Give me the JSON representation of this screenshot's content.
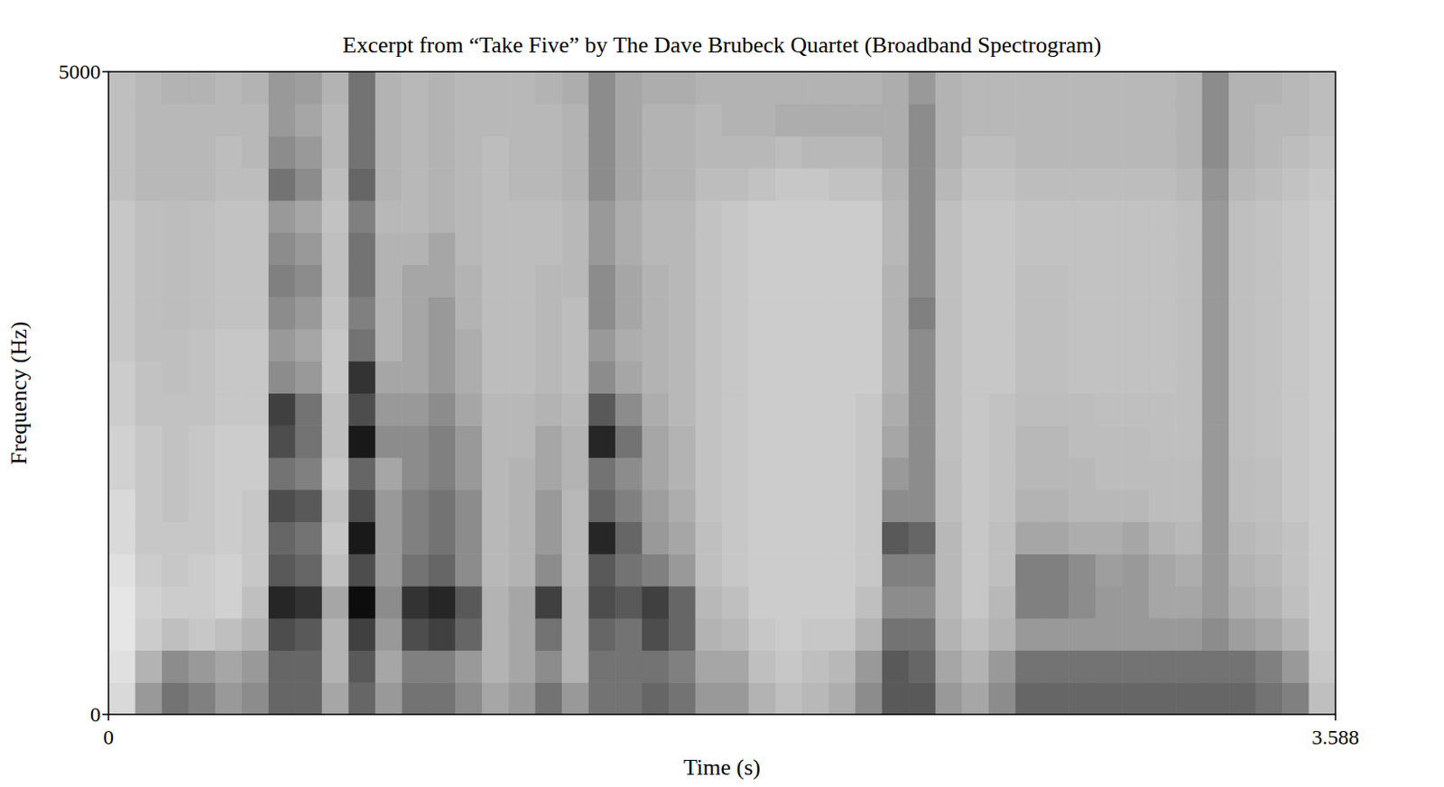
{
  "chart_data": {
    "type": "heatmap",
    "title": "Excerpt from “Take Five” by The Dave Brubeck Quartet (Broadband Spectrogram)",
    "x_label": "Time (s)",
    "y_label": "Frequency (Hz)",
    "xlim": [
      0,
      3.588
    ],
    "ylim": [
      0,
      5000
    ],
    "xticks": [
      0,
      3.588
    ],
    "yticks": [
      0,
      5000
    ],
    "zlim": [
      0,
      100
    ],
    "cells": [
      [
        15,
        12,
        10,
        10,
        12,
        15,
        15,
        18,
        18,
        20,
        20,
        22,
        22,
        22,
        22,
        22,
        25,
        25,
        25,
        25
      ],
      [
        40,
        30,
        20,
        18,
        20,
        22,
        22,
        22,
        22,
        24,
        24,
        25,
        25,
        25,
        25,
        25,
        28,
        28,
        28,
        28
      ],
      [
        55,
        45,
        25,
        20,
        22,
        22,
        24,
        24,
        24,
        24,
        25,
        25,
        26,
        26,
        26,
        26,
        28,
        28,
        28,
        30
      ],
      [
        50,
        40,
        22,
        20,
        20,
        22,
        22,
        22,
        22,
        24,
        24,
        24,
        25,
        25,
        25,
        25,
        28,
        28,
        28,
        30
      ],
      [
        40,
        35,
        25,
        18,
        18,
        20,
        20,
        20,
        20,
        22,
        22,
        22,
        24,
        24,
        24,
        24,
        26,
        26,
        28,
        28
      ],
      [
        45,
        40,
        30,
        25,
        22,
        22,
        22,
        20,
        20,
        22,
        22,
        22,
        24,
        24,
        24,
        24,
        26,
        28,
        28,
        30
      ],
      [
        60,
        60,
        70,
        85,
        65,
        60,
        70,
        55,
        70,
        75,
        45,
        40,
        45,
        50,
        45,
        40,
        55,
        45,
        40,
        40
      ],
      [
        60,
        60,
        65,
        80,
        60,
        55,
        65,
        50,
        55,
        55,
        40,
        35,
        40,
        45,
        40,
        35,
        45,
        40,
        35,
        38
      ],
      [
        35,
        30,
        30,
        35,
        25,
        22,
        25,
        22,
        25,
        25,
        22,
        22,
        24,
        25,
        25,
        24,
        26,
        28,
        28,
        30
      ],
      [
        60,
        65,
        75,
        95,
        70,
        90,
        70,
        60,
        90,
        70,
        80,
        55,
        50,
        55,
        55,
        50,
        60,
        55,
        55,
        55
      ],
      [
        40,
        35,
        40,
        45,
        40,
        40,
        40,
        35,
        45,
        40,
        35,
        30,
        30,
        30,
        30,
        28,
        30,
        30,
        30,
        30
      ],
      [
        55,
        50,
        70,
        80,
        55,
        50,
        50,
        45,
        45,
        40,
        35,
        35,
        35,
        35,
        30,
        28,
        28,
        28,
        28,
        28
      ],
      [
        55,
        50,
        75,
        85,
        60,
        55,
        55,
        50,
        50,
        45,
        40,
        40,
        40,
        35,
        35,
        30,
        30,
        30,
        30,
        30
      ],
      [
        45,
        40,
        60,
        65,
        45,
        45,
        45,
        40,
        40,
        35,
        32,
        32,
        30,
        30,
        28,
        28,
        28,
        28,
        28,
        28
      ],
      [
        35,
        30,
        30,
        30,
        28,
        28,
        28,
        28,
        28,
        28,
        26,
        26,
        26,
        26,
        26,
        26,
        26,
        26,
        28,
        28
      ],
      [
        40,
        35,
        35,
        35,
        30,
        30,
        30,
        30,
        28,
        28,
        26,
        26,
        26,
        26,
        26,
        26,
        28,
        28,
        28,
        28
      ],
      [
        55,
        45,
        55,
        75,
        45,
        40,
        40,
        35,
        35,
        30,
        28,
        28,
        28,
        28,
        26,
        26,
        28,
        28,
        28,
        30
      ],
      [
        40,
        30,
        30,
        30,
        28,
        28,
        28,
        30,
        30,
        28,
        26,
        26,
        26,
        28,
        28,
        28,
        30,
        30,
        30,
        32
      ],
      [
        55,
        55,
        60,
        70,
        65,
        85,
        60,
        55,
        85,
        65,
        45,
        40,
        45,
        45,
        40,
        40,
        45,
        45,
        45,
        45
      ],
      [
        55,
        55,
        55,
        65,
        55,
        60,
        50,
        45,
        55,
        45,
        35,
        32,
        35,
        35,
        32,
        32,
        35,
        35,
        35,
        35
      ],
      [
        60,
        55,
        70,
        75,
        50,
        40,
        38,
        35,
        35,
        32,
        30,
        30,
        30,
        30,
        28,
        28,
        30,
        30,
        30,
        32
      ],
      [
        55,
        50,
        60,
        60,
        40,
        35,
        32,
        30,
        30,
        28,
        28,
        28,
        28,
        28,
        28,
        28,
        30,
        30,
        30,
        32
      ],
      [
        40,
        35,
        30,
        28,
        25,
        25,
        24,
        24,
        24,
        24,
        24,
        24,
        24,
        24,
        24,
        24,
        26,
        28,
        28,
        30
      ],
      [
        40,
        35,
        28,
        25,
        22,
        22,
        22,
        22,
        22,
        22,
        22,
        22,
        22,
        22,
        22,
        22,
        26,
        28,
        30,
        30
      ],
      [
        30,
        25,
        22,
        20,
        20,
        20,
        20,
        20,
        20,
        20,
        20,
        20,
        20,
        20,
        20,
        20,
        24,
        28,
        30,
        30
      ],
      [
        25,
        22,
        20,
        20,
        20,
        20,
        20,
        20,
        20,
        20,
        20,
        20,
        20,
        20,
        20,
        20,
        22,
        26,
        32,
        30
      ],
      [
        28,
        25,
        22,
        20,
        20,
        20,
        20,
        20,
        20,
        20,
        20,
        20,
        20,
        20,
        20,
        20,
        22,
        28,
        32,
        30
      ],
      [
        32,
        28,
        22,
        20,
        20,
        20,
        20,
        20,
        20,
        20,
        20,
        20,
        20,
        20,
        20,
        20,
        24,
        28,
        32,
        30
      ],
      [
        45,
        40,
        30,
        25,
        22,
        22,
        22,
        22,
        22,
        22,
        20,
        20,
        20,
        20,
        20,
        20,
        24,
        28,
        32,
        30
      ],
      [
        65,
        65,
        55,
        45,
        50,
        65,
        45,
        40,
        35,
        32,
        30,
        30,
        30,
        30,
        28,
        28,
        30,
        32,
        32,
        32
      ],
      [
        65,
        60,
        55,
        45,
        50,
        60,
        45,
        45,
        45,
        45,
        45,
        45,
        50,
        45,
        45,
        45,
        45,
        45,
        45,
        40
      ],
      [
        40,
        35,
        30,
        28,
        28,
        28,
        26,
        26,
        25,
        25,
        25,
        25,
        25,
        25,
        25,
        25,
        28,
        30,
        30,
        30
      ],
      [
        35,
        30,
        25,
        22,
        22,
        22,
        22,
        22,
        22,
        22,
        22,
        22,
        22,
        22,
        22,
        22,
        24,
        26,
        28,
        28
      ],
      [
        45,
        40,
        30,
        28,
        25,
        25,
        24,
        24,
        24,
        24,
        22,
        22,
        22,
        22,
        22,
        22,
        24,
        26,
        28,
        28
      ],
      [
        60,
        55,
        40,
        50,
        50,
        35,
        30,
        28,
        28,
        26,
        25,
        25,
        25,
        25,
        24,
        24,
        26,
        28,
        28,
        28
      ],
      [
        60,
        55,
        40,
        50,
        50,
        35,
        30,
        28,
        28,
        26,
        25,
        25,
        25,
        25,
        24,
        24,
        26,
        28,
        28,
        28
      ],
      [
        60,
        55,
        40,
        45,
        45,
        32,
        28,
        28,
        26,
        26,
        24,
        24,
        24,
        24,
        24,
        24,
        26,
        28,
        28,
        28
      ],
      [
        60,
        55,
        40,
        40,
        38,
        32,
        28,
        26,
        26,
        25,
        24,
        24,
        24,
        24,
        24,
        24,
        26,
        28,
        28,
        28
      ],
      [
        60,
        55,
        40,
        40,
        40,
        35,
        28,
        26,
        26,
        25,
        24,
        24,
        24,
        24,
        24,
        24,
        26,
        28,
        28,
        28
      ],
      [
        60,
        55,
        40,
        35,
        35,
        30,
        26,
        26,
        25,
        25,
        24,
        24,
        24,
        24,
        24,
        24,
        26,
        28,
        28,
        28
      ],
      [
        60,
        55,
        40,
        35,
        32,
        28,
        26,
        26,
        25,
        25,
        25,
        25,
        25,
        25,
        25,
        25,
        28,
        30,
        30,
        30
      ],
      [
        60,
        55,
        45,
        40,
        40,
        40,
        40,
        40,
        40,
        40,
        40,
        40,
        40,
        40,
        40,
        40,
        42,
        45,
        45,
        45
      ],
      [
        60,
        55,
        38,
        32,
        30,
        28,
        26,
        26,
        25,
        25,
        25,
        25,
        25,
        25,
        25,
        25,
        28,
        30,
        30,
        30
      ],
      [
        55,
        50,
        35,
        30,
        28,
        26,
        25,
        25,
        24,
        24,
        24,
        24,
        24,
        24,
        24,
        24,
        26,
        28,
        28,
        30
      ],
      [
        50,
        40,
        30,
        25,
        24,
        24,
        22,
        22,
        22,
        22,
        22,
        22,
        22,
        22,
        22,
        22,
        24,
        26,
        28,
        28
      ],
      [
        25,
        22,
        20,
        20,
        20,
        20,
        20,
        20,
        20,
        20,
        20,
        20,
        20,
        20,
        20,
        20,
        22,
        24,
        26,
        26
      ]
    ]
  }
}
